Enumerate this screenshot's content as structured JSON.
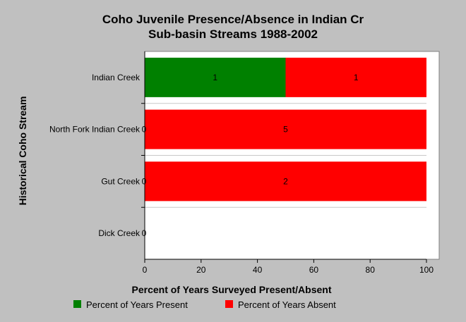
{
  "chart_data": {
    "type": "bar",
    "orientation": "horizontal",
    "stacked": true,
    "title": [
      "Coho Juvenile Presence/Absence in Indian Cr",
      "Sub-basin Streams 1988-2002"
    ],
    "xlabel": "Percent of Years Surveyed Present/Absent",
    "ylabel": "Historical Coho Stream",
    "xlim": [
      0,
      100
    ],
    "xticks": [
      "0",
      "20",
      "40",
      "60",
      "80",
      "100"
    ],
    "categories": [
      "Indian Creek",
      "North Fork Indian Creek",
      "Gut Creek",
      "Dick Creek"
    ],
    "series": [
      {
        "name": "Percent of Years Present",
        "color": "#008000",
        "values": [
          50,
          0,
          0,
          0
        ],
        "counts": [
          "1",
          "0",
          "0",
          "0"
        ]
      },
      {
        "name": "Percent of Years Absent",
        "color": "#ff0000",
        "values": [
          50,
          100,
          100,
          0
        ],
        "counts": [
          "1",
          "5",
          "2",
          ""
        ]
      }
    ],
    "grid": true,
    "legend_position": "bottom"
  }
}
